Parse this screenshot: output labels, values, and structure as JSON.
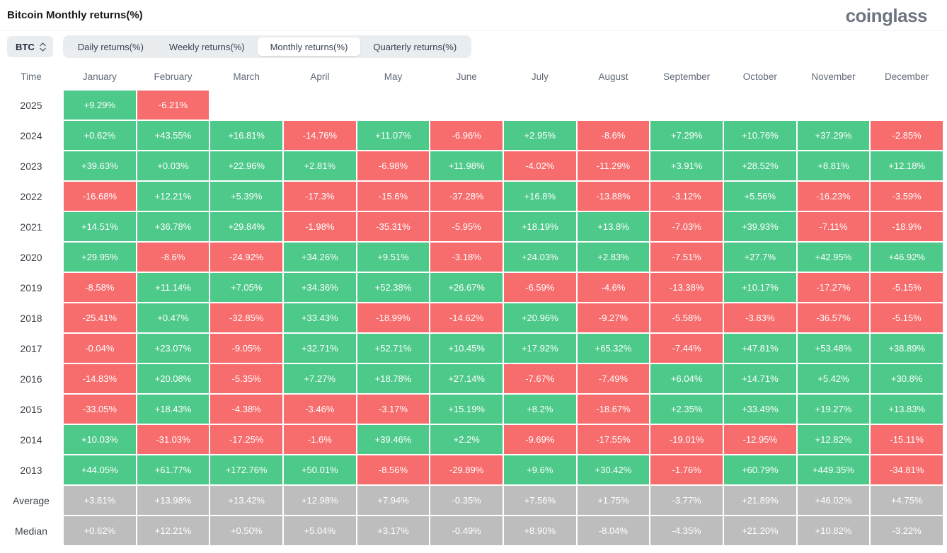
{
  "header": {
    "title": "Bitcoin Monthly returns(%)",
    "logo": "coinglass"
  },
  "toolbar": {
    "coin_selector": {
      "label": "BTC"
    },
    "tabs": [
      {
        "label": "Daily returns(%)",
        "active": false
      },
      {
        "label": "Weekly returns(%)",
        "active": false
      },
      {
        "label": "Monthly returns(%)",
        "active": true
      },
      {
        "label": "Quarterly returns(%)",
        "active": false
      }
    ]
  },
  "colors": {
    "positive": "#4dc98a",
    "negative": "#f76c6c",
    "summary": "#bdbdbd"
  },
  "table": {
    "columns": [
      "Time",
      "January",
      "February",
      "March",
      "April",
      "May",
      "June",
      "July",
      "August",
      "September",
      "October",
      "November",
      "December"
    ],
    "rows": [
      {
        "time": "2025",
        "type": "year",
        "values": [
          "+9.29%",
          "-6.21%",
          "",
          "",
          "",
          "",
          "",
          "",
          "",
          "",
          "",
          ""
        ]
      },
      {
        "time": "2024",
        "type": "year",
        "values": [
          "+0.62%",
          "+43.55%",
          "+16.81%",
          "-14.76%",
          "+11.07%",
          "-6.96%",
          "+2.95%",
          "-8.6%",
          "+7.29%",
          "+10.76%",
          "+37.29%",
          "-2.85%"
        ]
      },
      {
        "time": "2023",
        "type": "year",
        "values": [
          "+39.63%",
          "+0.03%",
          "+22.96%",
          "+2.81%",
          "-6.98%",
          "+11.98%",
          "-4.02%",
          "-11.29%",
          "+3.91%",
          "+28.52%",
          "+8.81%",
          "+12.18%"
        ]
      },
      {
        "time": "2022",
        "type": "year",
        "values": [
          "-16.68%",
          "+12.21%",
          "+5.39%",
          "-17.3%",
          "-15.6%",
          "-37.28%",
          "+16.8%",
          "-13.88%",
          "-3.12%",
          "+5.56%",
          "-16.23%",
          "-3.59%"
        ]
      },
      {
        "time": "2021",
        "type": "year",
        "values": [
          "+14.51%",
          "+36.78%",
          "+29.84%",
          "-1.98%",
          "-35.31%",
          "-5.95%",
          "+18.19%",
          "+13.8%",
          "-7.03%",
          "+39.93%",
          "-7.11%",
          "-18.9%"
        ]
      },
      {
        "time": "2020",
        "type": "year",
        "values": [
          "+29.95%",
          "-8.6%",
          "-24.92%",
          "+34.26%",
          "+9.51%",
          "-3.18%",
          "+24.03%",
          "+2.83%",
          "-7.51%",
          "+27.7%",
          "+42.95%",
          "+46.92%"
        ]
      },
      {
        "time": "2019",
        "type": "year",
        "values": [
          "-8.58%",
          "+11.14%",
          "+7.05%",
          "+34.36%",
          "+52.38%",
          "+26.67%",
          "-6.59%",
          "-4.6%",
          "-13.38%",
          "+10.17%",
          "-17.27%",
          "-5.15%"
        ]
      },
      {
        "time": "2018",
        "type": "year",
        "values": [
          "-25.41%",
          "+0.47%",
          "-32.85%",
          "+33.43%",
          "-18.99%",
          "-14.62%",
          "+20.96%",
          "-9.27%",
          "-5.58%",
          "-3.83%",
          "-36.57%",
          "-5.15%"
        ]
      },
      {
        "time": "2017",
        "type": "year",
        "values": [
          "-0.04%",
          "+23.07%",
          "-9.05%",
          "+32.71%",
          "+52.71%",
          "+10.45%",
          "+17.92%",
          "+65.32%",
          "-7.44%",
          "+47.81%",
          "+53.48%",
          "+38.89%"
        ]
      },
      {
        "time": "2016",
        "type": "year",
        "values": [
          "-14.83%",
          "+20.08%",
          "-5.35%",
          "+7.27%",
          "+18.78%",
          "+27.14%",
          "-7.67%",
          "-7.49%",
          "+6.04%",
          "+14.71%",
          "+5.42%",
          "+30.8%"
        ]
      },
      {
        "time": "2015",
        "type": "year",
        "values": [
          "-33.05%",
          "+18.43%",
          "-4.38%",
          "-3.46%",
          "-3.17%",
          "+15.19%",
          "+8.2%",
          "-18.67%",
          "+2.35%",
          "+33.49%",
          "+19.27%",
          "+13.83%"
        ]
      },
      {
        "time": "2014",
        "type": "year",
        "values": [
          "+10.03%",
          "-31.03%",
          "-17.25%",
          "-1.6%",
          "+39.46%",
          "+2.2%",
          "-9.69%",
          "-17.55%",
          "-19.01%",
          "-12.95%",
          "+12.82%",
          "-15.11%"
        ]
      },
      {
        "time": "2013",
        "type": "year",
        "values": [
          "+44.05%",
          "+61.77%",
          "+172.76%",
          "+50.01%",
          "-8.56%",
          "-29.89%",
          "+9.6%",
          "+30.42%",
          "-1.76%",
          "+60.79%",
          "+449.35%",
          "-34.81%"
        ]
      },
      {
        "time": "Average",
        "type": "summary",
        "values": [
          "+3.81%",
          "+13.98%",
          "+13.42%",
          "+12.98%",
          "+7.94%",
          "-0.35%",
          "+7.56%",
          "+1.75%",
          "-3.77%",
          "+21.89%",
          "+46.02%",
          "+4.75%"
        ]
      },
      {
        "time": "Median",
        "type": "summary",
        "values": [
          "+0.62%",
          "+12.21%",
          "+0.50%",
          "+5.04%",
          "+3.17%",
          "-0.49%",
          "+8.90%",
          "-8.04%",
          "-4.35%",
          "+21.20%",
          "+10.82%",
          "-3.22%"
        ]
      }
    ]
  }
}
